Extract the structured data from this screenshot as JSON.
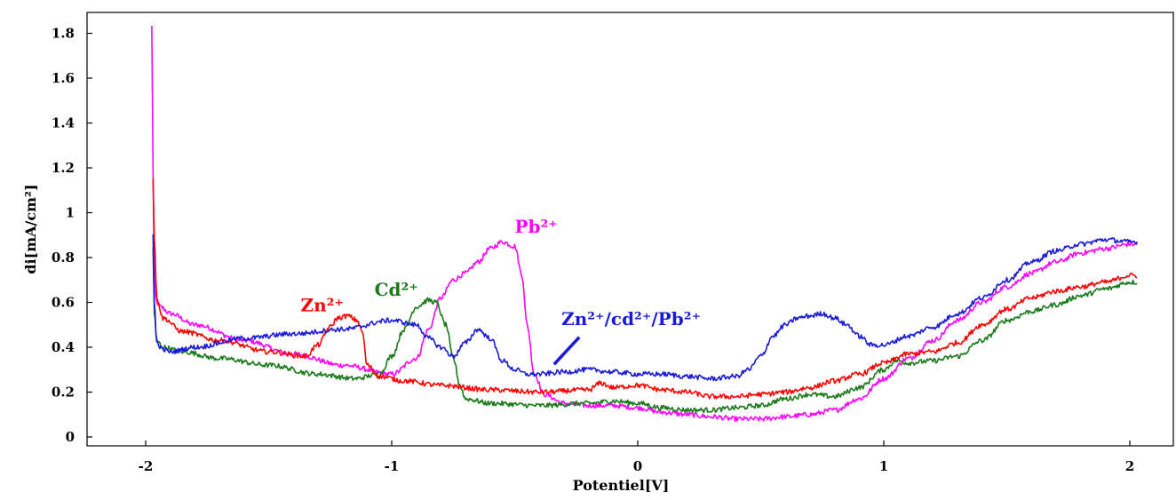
{
  "chart_data": {
    "type": "line",
    "title": "",
    "xlabel": "Potentiel[V]",
    "ylabel": "di[mA/cm²]",
    "xlim": [
      -2.0,
      2.05
    ],
    "ylim": [
      -0.05,
      1.9
    ],
    "x_ticks": [
      -2,
      -1,
      0,
      1,
      2
    ],
    "x_tick_labels": [
      "-2",
      "-1",
      "0",
      "1",
      "2"
    ],
    "y_ticks": [
      0,
      0.2,
      0.4,
      0.6,
      0.8,
      1.0,
      1.2,
      1.4,
      1.6,
      1.8
    ],
    "y_tick_labels": [
      "0",
      "0.2",
      "0.4",
      "0.6",
      "0.8",
      "1",
      "1.2",
      "1.4",
      "1.6",
      "1.8"
    ],
    "grid": false,
    "legend": "none",
    "series": [
      {
        "name": "Zn²⁺",
        "color": "#ff0000",
        "x": [
          -1.97,
          -1.965,
          -1.955,
          -1.93,
          -1.85,
          -1.7,
          -1.5,
          -1.35,
          -1.3,
          -1.25,
          -1.22,
          -1.18,
          -1.14,
          -1.12,
          -1.1,
          -1.05,
          -0.95,
          -0.8,
          -0.6,
          -0.4,
          -0.2,
          -0.15,
          -0.1,
          0.0,
          0.1,
          0.2,
          0.3,
          0.4,
          0.5,
          0.6,
          0.7,
          0.8,
          0.9,
          1.0,
          1.1,
          1.2,
          1.3,
          1.4,
          1.5,
          1.6,
          1.7,
          1.8,
          1.9,
          2.0,
          2.03
        ],
        "y": [
          1.15,
          0.9,
          0.62,
          0.53,
          0.47,
          0.43,
          0.38,
          0.36,
          0.41,
          0.49,
          0.53,
          0.54,
          0.52,
          0.47,
          0.32,
          0.27,
          0.25,
          0.23,
          0.21,
          0.2,
          0.21,
          0.24,
          0.22,
          0.23,
          0.21,
          0.2,
          0.18,
          0.18,
          0.19,
          0.2,
          0.22,
          0.25,
          0.28,
          0.33,
          0.37,
          0.38,
          0.42,
          0.5,
          0.57,
          0.62,
          0.65,
          0.67,
          0.69,
          0.72,
          0.72
        ]
      },
      {
        "name": "Cd²⁺",
        "color": "#1a7a1a",
        "x": [
          -1.97,
          -1.965,
          -1.955,
          -1.93,
          -1.85,
          -1.7,
          -1.5,
          -1.3,
          -1.15,
          -1.05,
          -1.0,
          -0.95,
          -0.9,
          -0.85,
          -0.82,
          -0.78,
          -0.75,
          -0.72,
          -0.7,
          -0.6,
          -0.4,
          -0.2,
          -0.1,
          0.0,
          0.1,
          0.2,
          0.3,
          0.4,
          0.5,
          0.6,
          0.7,
          0.8,
          0.9,
          1.0,
          1.05,
          1.1,
          1.2,
          1.3,
          1.4,
          1.5,
          1.6,
          1.7,
          1.8,
          1.9,
          2.0,
          2.03
        ],
        "y": [
          0.85,
          0.55,
          0.43,
          0.4,
          0.38,
          0.35,
          0.32,
          0.28,
          0.26,
          0.28,
          0.36,
          0.48,
          0.58,
          0.61,
          0.6,
          0.5,
          0.35,
          0.22,
          0.17,
          0.15,
          0.14,
          0.15,
          0.16,
          0.15,
          0.13,
          0.12,
          0.12,
          0.13,
          0.14,
          0.17,
          0.19,
          0.18,
          0.22,
          0.3,
          0.34,
          0.33,
          0.34,
          0.36,
          0.43,
          0.52,
          0.56,
          0.59,
          0.63,
          0.66,
          0.69,
          0.69
        ]
      },
      {
        "name": "Pb²⁺",
        "color": "#ff00ff",
        "x": [
          -1.975,
          -1.97,
          -1.965,
          -1.955,
          -1.94,
          -1.9,
          -1.8,
          -1.6,
          -1.4,
          -1.2,
          -1.0,
          -0.9,
          -0.85,
          -0.8,
          -0.75,
          -0.7,
          -0.65,
          -0.6,
          -0.55,
          -0.5,
          -0.47,
          -0.45,
          -0.42,
          -0.38,
          -0.3,
          -0.2,
          -0.1,
          0.0,
          0.1,
          0.2,
          0.3,
          0.4,
          0.5,
          0.6,
          0.7,
          0.8,
          0.9,
          1.0,
          1.1,
          1.2,
          1.3,
          1.4,
          1.5,
          1.6,
          1.7,
          1.8,
          1.9,
          2.0,
          2.03
        ],
        "y": [
          1.83,
          1.2,
          0.7,
          0.6,
          0.58,
          0.55,
          0.5,
          0.43,
          0.37,
          0.32,
          0.28,
          0.35,
          0.48,
          0.62,
          0.7,
          0.73,
          0.78,
          0.84,
          0.87,
          0.85,
          0.72,
          0.5,
          0.28,
          0.19,
          0.15,
          0.14,
          0.14,
          0.13,
          0.11,
          0.1,
          0.09,
          0.08,
          0.08,
          0.09,
          0.1,
          0.12,
          0.17,
          0.26,
          0.35,
          0.43,
          0.52,
          0.6,
          0.67,
          0.73,
          0.78,
          0.82,
          0.84,
          0.86,
          0.86
        ]
      },
      {
        "name": "Zn²⁺/cd²⁺/Pb²⁺",
        "color": "#1a1adb",
        "x": [
          -1.97,
          -1.965,
          -1.955,
          -1.93,
          -1.9,
          -1.8,
          -1.6,
          -1.4,
          -1.2,
          -1.0,
          -0.9,
          -0.85,
          -0.8,
          -0.75,
          -0.7,
          -0.65,
          -0.6,
          -0.55,
          -0.5,
          -0.45,
          -0.4,
          -0.3,
          -0.2,
          -0.1,
          0.0,
          0.1,
          0.2,
          0.3,
          0.4,
          0.45,
          0.5,
          0.55,
          0.6,
          0.65,
          0.7,
          0.75,
          0.8,
          0.85,
          0.9,
          0.95,
          1.0,
          1.1,
          1.2,
          1.3,
          1.4,
          1.5,
          1.6,
          1.7,
          1.8,
          1.9,
          2.0,
          2.03
        ],
        "y": [
          0.9,
          0.6,
          0.42,
          0.39,
          0.38,
          0.4,
          0.44,
          0.46,
          0.48,
          0.52,
          0.5,
          0.44,
          0.4,
          0.36,
          0.42,
          0.48,
          0.44,
          0.34,
          0.3,
          0.28,
          0.28,
          0.29,
          0.3,
          0.29,
          0.28,
          0.28,
          0.27,
          0.26,
          0.27,
          0.3,
          0.36,
          0.45,
          0.5,
          0.53,
          0.54,
          0.55,
          0.53,
          0.5,
          0.45,
          0.41,
          0.41,
          0.45,
          0.49,
          0.55,
          0.62,
          0.7,
          0.78,
          0.83,
          0.86,
          0.88,
          0.87,
          0.87
        ]
      }
    ],
    "annotations": [
      {
        "text": "Zn²⁺",
        "color": "#ff0000",
        "x": -1.37,
        "y": 0.56
      },
      {
        "text": "Cd²⁺",
        "color": "#1a7a1a",
        "x": -1.07,
        "y": 0.63
      },
      {
        "text": "Pb²⁺",
        "color": "#ff00ff",
        "x": -0.5,
        "y": 0.91
      },
      {
        "text": "Zn²⁺/cd²⁺/Pb²⁺",
        "color": "#1a1adb",
        "x": -0.31,
        "y": 0.5,
        "arrow_to": {
          "x": -0.34,
          "y": 0.3
        }
      }
    ]
  }
}
